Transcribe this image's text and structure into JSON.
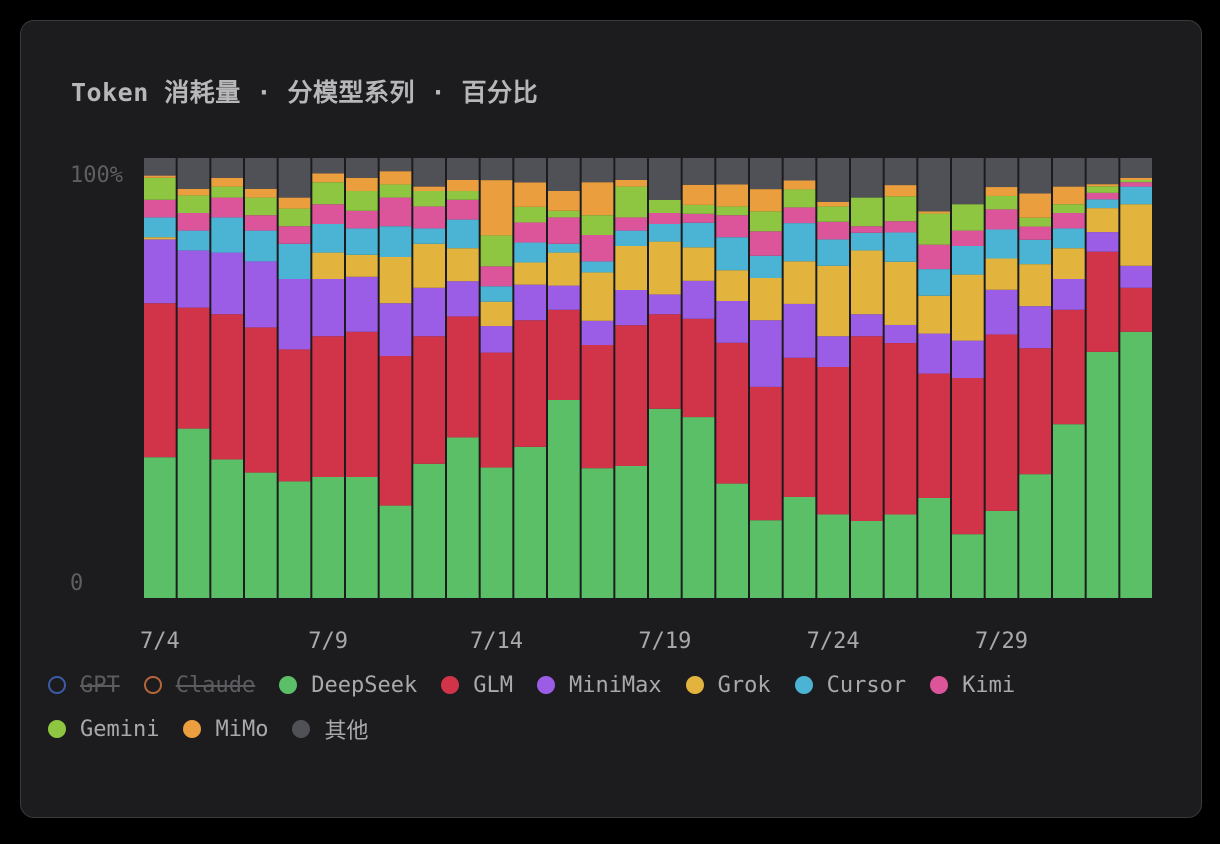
{
  "card": {
    "title": "Token 消耗量 · 分模型系列 · 百分比"
  },
  "chart_data": {
    "type": "bar",
    "stacked": true,
    "normalized": true,
    "title": "Token 消耗量 · 分模型系列 · 百分比",
    "xlabel": "",
    "ylabel": "",
    "y_ticks": [
      "0",
      "100%"
    ],
    "ylim": [
      0,
      100
    ],
    "grid": false,
    "legend_position": "bottom",
    "x_tick_labels": [
      "7/4",
      "7/9",
      "7/14",
      "7/19",
      "7/24",
      "7/29"
    ],
    "categories": [
      "7/4",
      "7/5",
      "7/6",
      "7/7",
      "7/8",
      "7/9",
      "7/10",
      "7/11",
      "7/12",
      "7/13",
      "7/14",
      "7/15",
      "7/16",
      "7/17",
      "7/18",
      "7/19",
      "7/20",
      "7/21",
      "7/22",
      "7/23",
      "7/24",
      "7/25",
      "7/26",
      "7/27",
      "7/28",
      "7/29",
      "7/30",
      "7/31",
      "8/1",
      "8/2"
    ],
    "series": [
      {
        "name": "GPT",
        "color": "#3b5ba5",
        "visible": false,
        "values": [
          0,
          0,
          0,
          0,
          0,
          0,
          0,
          0,
          0,
          0,
          0,
          0,
          0,
          0,
          0,
          0,
          0,
          0,
          0,
          0,
          0,
          0,
          0,
          0,
          0,
          0,
          0,
          0,
          0,
          0
        ]
      },
      {
        "name": "Claude",
        "color": "#b5653a",
        "visible": false,
        "values": [
          0,
          0,
          0,
          0,
          0,
          0,
          0,
          0,
          0,
          0,
          0,
          0,
          0,
          0,
          0,
          0,
          0,
          0,
          0,
          0,
          0,
          0,
          0,
          0,
          0,
          0,
          0,
          0,
          0,
          0
        ]
      },
      {
        "name": "DeepSeek",
        "color": "#5bbf68",
        "visible": true,
        "values": [
          32,
          38.5,
          31.5,
          28.5,
          26.5,
          27.5,
          27.5,
          21,
          30.5,
          36.5,
          29.5,
          34,
          45,
          29.5,
          30,
          43,
          40.5,
          26,
          17.5,
          22.5,
          19,
          17.5,
          18.5,
          22.5,
          14.5,
          19.5,
          28,
          39.5,
          56.5,
          60.5
        ]
      },
      {
        "name": "GLM",
        "color": "#d13349",
        "visible": true,
        "values": [
          35,
          27.5,
          33,
          33,
          30,
          32,
          33,
          34,
          29,
          27.5,
          26,
          28.5,
          20.5,
          28,
          32,
          21.5,
          22,
          32,
          30,
          31,
          33.5,
          42,
          38,
          28,
          35.5,
          39.5,
          28.5,
          26,
          23,
          10
        ]
      },
      {
        "name": "MiniMax",
        "color": "#9b5de5",
        "visible": true,
        "values": [
          14.5,
          13,
          14,
          15,
          16,
          13,
          12.5,
          12,
          11,
          8,
          6,
          8,
          5.5,
          5.5,
          8,
          4.5,
          8.5,
          9.5,
          15,
          12,
          7,
          5,
          4,
          9,
          8.5,
          10,
          9.5,
          7,
          4.5,
          5
        ]
      },
      {
        "name": "Grok",
        "color": "#e2b43e",
        "visible": true,
        "values": [
          0.5,
          0,
          0,
          0,
          0,
          6,
          5,
          10.5,
          10,
          7.5,
          5.5,
          5,
          7.5,
          11,
          10,
          12,
          7.5,
          7,
          9.5,
          9.5,
          16,
          14.5,
          14,
          8.5,
          15,
          7,
          9.5,
          7,
          5.5,
          14
        ]
      },
      {
        "name": "Cursor",
        "color": "#4bb4d4",
        "visible": true,
        "values": [
          4.5,
          4.5,
          8,
          7,
          8,
          6.5,
          6,
          7,
          3.5,
          6.5,
          3.5,
          4.5,
          2,
          2.5,
          3.5,
          4,
          5.5,
          7.5,
          5,
          8.5,
          6,
          4,
          6.5,
          6,
          6.5,
          6.5,
          5.5,
          4.5,
          2,
          4
        ]
      },
      {
        "name": "Kimi",
        "color": "#dc5499",
        "visible": true,
        "values": [
          4,
          4,
          4.5,
          3.5,
          4,
          4.5,
          4,
          6.5,
          5,
          4.5,
          4.5,
          4.5,
          6,
          6,
          3,
          2.5,
          2,
          5,
          5.5,
          3.5,
          4,
          1.5,
          2.5,
          5.5,
          3.5,
          4.5,
          3,
          3.5,
          1.5,
          1
        ]
      },
      {
        "name": "Gemini",
        "color": "#8ec641",
        "visible": true,
        "values": [
          5,
          4,
          2.5,
          4,
          4,
          5,
          4.5,
          3,
          3.5,
          2,
          7,
          3.5,
          1.5,
          4.5,
          7,
          3,
          2,
          2,
          4.5,
          4,
          3.5,
          6.5,
          5.5,
          7,
          6,
          3,
          2,
          2,
          1.5,
          0.5
        ]
      },
      {
        "name": "MiMo",
        "color": "#eb9e3d",
        "visible": true,
        "values": [
          0.5,
          1.5,
          2,
          2,
          2.5,
          2,
          3,
          3,
          1,
          2.5,
          12.5,
          5.5,
          4.5,
          7.5,
          1.5,
          0,
          4.5,
          5,
          5,
          2,
          1,
          0,
          2.5,
          0.5,
          0,
          2,
          5.5,
          4,
          0.5,
          0.5
        ]
      },
      {
        "name": "其他",
        "color": "#505057",
        "visible": true,
        "values": [
          4,
          7,
          4.5,
          7,
          9,
          3.5,
          4.5,
          3,
          6.5,
          5,
          5,
          5.5,
          7.5,
          5.5,
          5,
          9.5,
          6,
          6,
          7,
          5,
          10,
          9,
          6,
          12,
          10.5,
          6.5,
          8,
          6.5,
          6,
          4.5
        ]
      }
    ]
  }
}
